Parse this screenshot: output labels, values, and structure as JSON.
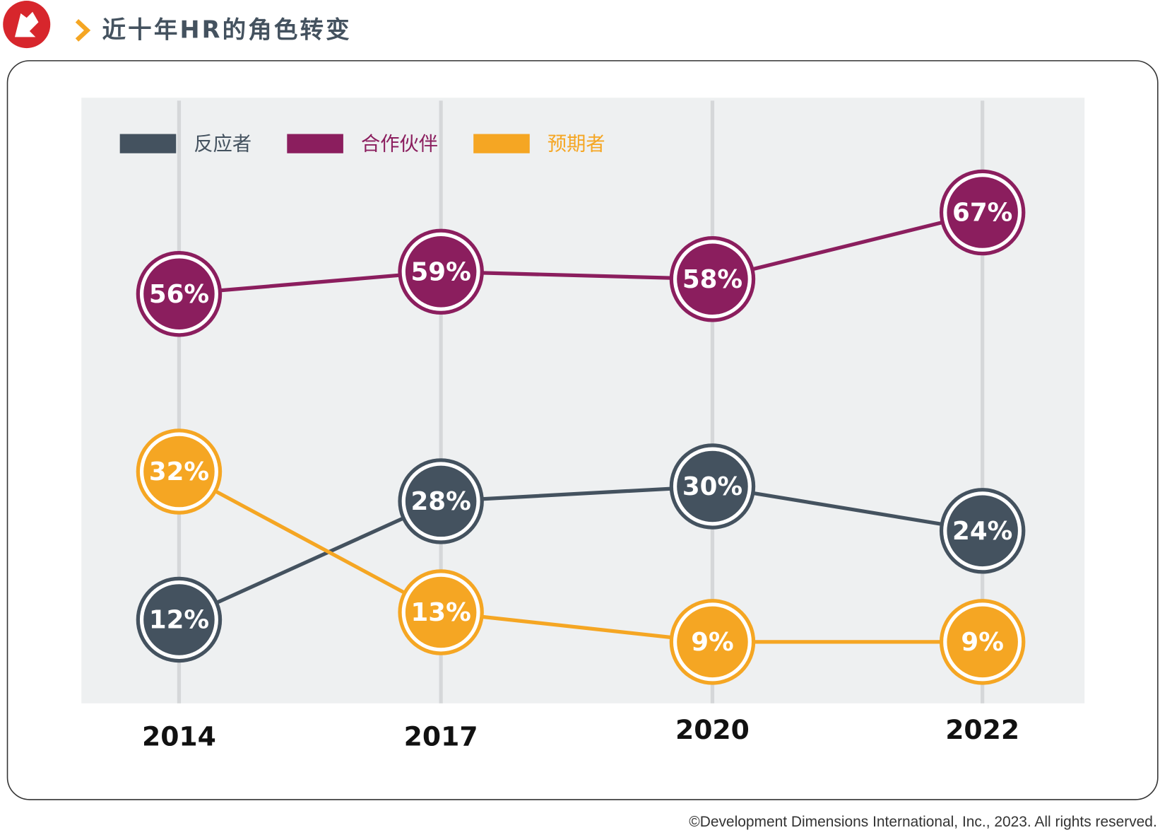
{
  "chart_data": {
    "type": "line",
    "title": "近十年HR的角色转变",
    "categories": [
      "2014",
      "2017",
      "2020",
      "2022"
    ],
    "series": [
      {
        "name": "反应者",
        "color": "#44525f",
        "values": [
          12,
          28,
          30,
          24
        ],
        "value_labels": [
          "12%",
          "28%",
          "30%",
          "24%"
        ]
      },
      {
        "name": "合作伙伴",
        "color": "#8b1e5e",
        "values": [
          56,
          59,
          58,
          67
        ],
        "value_labels": [
          "56%",
          "59%",
          "58%",
          "67%"
        ]
      },
      {
        "name": "预期者",
        "color": "#f5a623",
        "values": [
          32,
          13,
          9,
          9
        ],
        "value_labels": [
          "32%",
          "13%",
          "9%",
          "9%"
        ]
      }
    ],
    "grid": true,
    "legend": "top-left",
    "source": "©Development Dimensions International, Inc., 2023. All rights reserved."
  }
}
